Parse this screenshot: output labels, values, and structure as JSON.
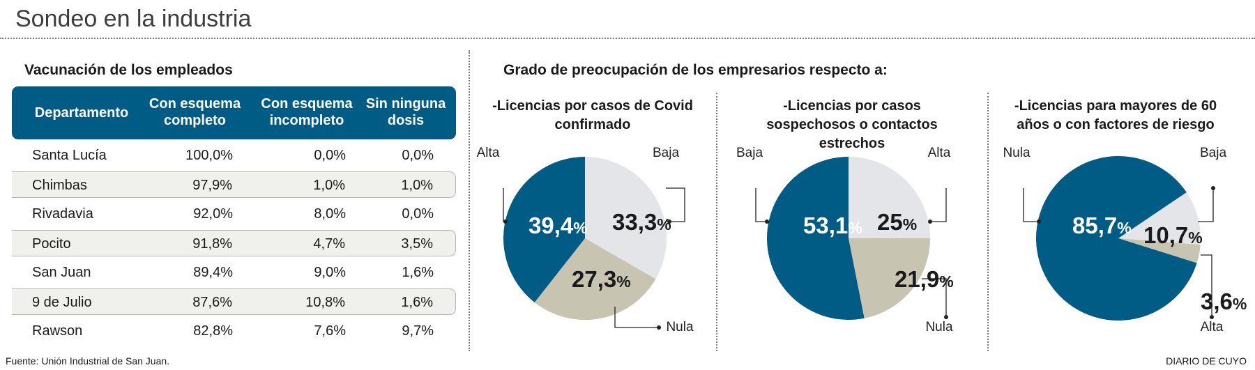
{
  "title": "Sondeo en la industria",
  "table": {
    "title": "Vacunación de los empleados",
    "headers": [
      "Departamento",
      "Con esquema completo",
      "Con esquema incompleto",
      "Sin ninguna dosis"
    ],
    "rows": [
      [
        "Santa Lucía",
        "100,0%",
        "0,0%",
        "0,0%"
      ],
      [
        "Chimbas",
        "97,9%",
        "1,0%",
        "1,0%"
      ],
      [
        "Rivadavia",
        "92,0%",
        "8,0%",
        "0,0%"
      ],
      [
        "Pocito",
        "91,8%",
        "4,7%",
        "3,5%"
      ],
      [
        "San Juan",
        "89,4%",
        "9,0%",
        "1,6%"
      ],
      [
        "9 de Julio",
        "87,6%",
        "10,8%",
        "1,6%"
      ],
      [
        "Rawson",
        "82,8%",
        "7,6%",
        "9,7%"
      ]
    ]
  },
  "pies_title": "Grado de preocupación de los empresarios respecto a:",
  "colors": {
    "blue": "#005b85",
    "light": "#e4e5e9",
    "tan": "#c7c4b2"
  },
  "chart_data": [
    {
      "type": "pie",
      "title": "-Licencias por casos de Covid confirmado",
      "slices": [
        {
          "label": "Baja",
          "value": 33.3,
          "text": "33,3%",
          "color": "#e4e5e9"
        },
        {
          "label": "Nula",
          "value": 27.3,
          "text": "27,3%",
          "color": "#c7c4b2"
        },
        {
          "label": "Alta",
          "value": 39.4,
          "text": "39,4%",
          "color": "#005b85"
        }
      ]
    },
    {
      "type": "pie",
      "title": "-Licencias por casos sospechosos o contactos estrechos",
      "slices": [
        {
          "label": "Alta",
          "value": 25,
          "text": "25%",
          "color": "#e4e5e9"
        },
        {
          "label": "Nula",
          "value": 21.9,
          "text": "21,9%",
          "color": "#c7c4b2"
        },
        {
          "label": "Baja",
          "value": 53.1,
          "text": "53,1%",
          "color": "#005b85"
        }
      ]
    },
    {
      "type": "pie",
      "title": "-Licencias para mayores de 60 años o con factores de riesgo",
      "slices": [
        {
          "label": "Baja",
          "value": 10.7,
          "text": "10,7%",
          "color": "#e4e5e9"
        },
        {
          "label": "Alta",
          "value": 3.6,
          "text": "3,6%",
          "color": "#c7c4b2"
        },
        {
          "label": "Nula",
          "value": 85.7,
          "text": "85,7%",
          "color": "#005b85"
        }
      ]
    }
  ],
  "footer": {
    "source": "Fuente: Unión Industrial de San Juan.",
    "brand": "DIARIO DE CUYO"
  }
}
